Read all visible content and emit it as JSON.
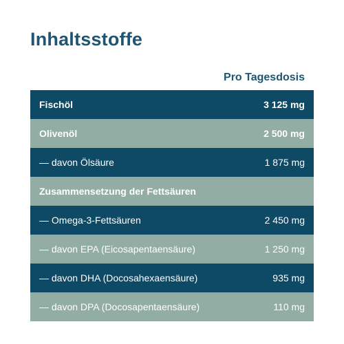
{
  "title": "Inhaltsstoffe",
  "column_header": "Pro Tagesdosis",
  "colors": {
    "title": "#1f5570",
    "row_dark": "#0e4a66",
    "row_light": "#91ada4",
    "text_on_row": "#ffffff"
  },
  "rows": [
    {
      "label": "Fischöl",
      "value": "3 125 mg"
    },
    {
      "label": "Olivenöl",
      "value": "2 500 mg"
    },
    {
      "label": "— davon Ölsäure",
      "value": "1 875 mg"
    },
    {
      "label": "Zusammensetzung der Fettsäuren",
      "value": ""
    },
    {
      "label": "— Omega-3-Fettsäuren",
      "value": "2 450 mg"
    },
    {
      "label": "— davon EPA (Eicosapentaensäure)",
      "value": "1 250 mg"
    },
    {
      "label": "— davon DHA (Docosahexaensäure)",
      "value": "935 mg"
    },
    {
      "label": "— davon DPA (Docosapentaensäure)",
      "value": "110 mg"
    }
  ]
}
